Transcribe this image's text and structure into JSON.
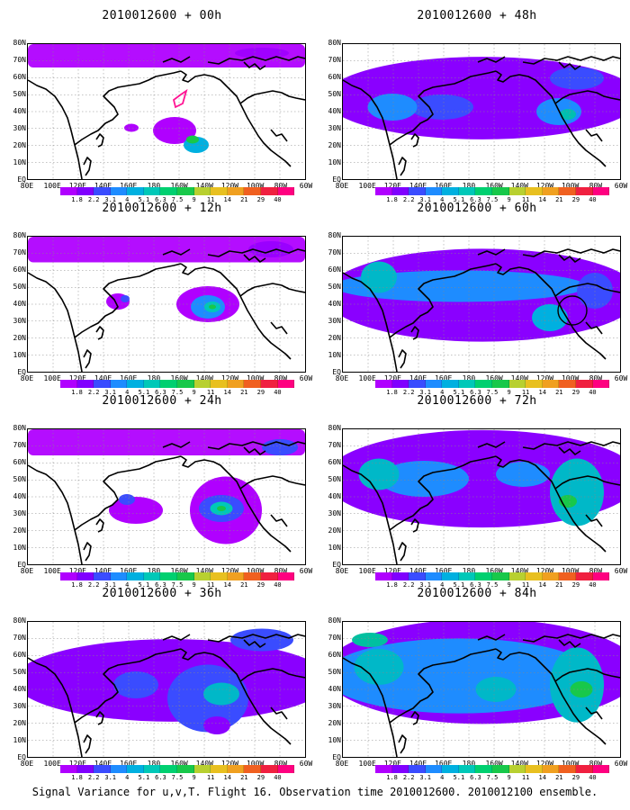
{
  "panels": [
    {
      "title": "2010012600 + 00h",
      "spread": 0,
      "blobs": [
        [
          163,
          96,
          48,
          30,
          "#b000ff",
          1
        ],
        [
          187,
          112,
          28,
          18,
          "#00b0e0",
          1
        ],
        [
          183,
          106,
          14,
          9,
          "#18c84a",
          1
        ],
        [
          115,
          93,
          16,
          9,
          "#b000ff",
          1
        ],
        [
          0,
          16,
          310,
          20,
          "#b000ff",
          0.95
        ],
        [
          260,
          10,
          60,
          12,
          "#a000ff",
          1
        ]
      ],
      "marks": "box"
    },
    {
      "title": "2010012600 + 48h",
      "spread": 2,
      "blobs": [
        [
          155,
          60,
          175,
          55,
          "#8a00ff",
          1
        ],
        [
          110,
          70,
          70,
          28,
          "#3a4cff",
          1
        ],
        [
          55,
          70,
          55,
          30,
          "#1e8cff",
          1
        ],
        [
          240,
          75,
          50,
          30,
          "#1e8cff",
          1
        ],
        [
          250,
          78,
          18,
          12,
          "#00c0b0",
          1
        ],
        [
          260,
          38,
          60,
          25,
          "#3a4cff",
          1
        ]
      ],
      "marks": "none"
    },
    {
      "title": "2010012600 + 12h",
      "spread": 0,
      "blobs": [
        [
          200,
          75,
          70,
          40,
          "#b000ff",
          1
        ],
        [
          100,
          72,
          26,
          18,
          "#b000ff",
          1
        ],
        [
          200,
          78,
          38,
          26,
          "#1e8cff",
          1
        ],
        [
          205,
          78,
          18,
          12,
          "#00c8b8",
          1
        ],
        [
          205,
          78,
          8,
          5,
          "#18c84a",
          1
        ],
        [
          0,
          16,
          310,
          25,
          "#b000ff",
          0.95
        ],
        [
          270,
          14,
          50,
          18,
          "#9a00ff",
          1
        ],
        [
          108,
          69,
          10,
          8,
          "#3a4cff",
          1
        ]
      ],
      "marks": "none"
    },
    {
      "title": "2010012600 + 60h",
      "spread": 3,
      "blobs": [
        [
          155,
          65,
          175,
          62,
          "#8a00ff",
          1
        ],
        [
          130,
          55,
          140,
          35,
          "#1e8cff",
          1
        ],
        [
          40,
          45,
          40,
          35,
          "#00b8c8",
          1
        ],
        [
          230,
          90,
          40,
          30,
          "#00b0e0",
          1
        ],
        [
          280,
          60,
          40,
          40,
          "#3a4cff",
          1
        ]
      ],
      "marks": "circle"
    },
    {
      "title": "2010012600 + 24h",
      "spread": 1,
      "blobs": [
        [
          220,
          90,
          80,
          45,
          "#b000ff",
          1
        ],
        [
          215,
          88,
          50,
          30,
          "#3a4cff",
          1
        ],
        [
          215,
          88,
          25,
          15,
          "#00c8b8",
          1
        ],
        [
          215,
          88,
          10,
          6,
          "#18c84a",
          1
        ],
        [
          120,
          90,
          60,
          30,
          "#b000ff",
          1
        ],
        [
          0,
          14,
          310,
          30,
          "#b000ff",
          0.95
        ],
        [
          110,
          78,
          18,
          12,
          "#3a4cff",
          1
        ],
        [
          280,
          20,
          40,
          18,
          "#3a4cff",
          1
        ]
      ],
      "marks": "none"
    },
    {
      "title": "2010012600 + 72h",
      "spread": 3,
      "blobs": [
        [
          155,
          55,
          175,
          65,
          "#8a00ff",
          1
        ],
        [
          90,
          55,
          100,
          40,
          "#1e8cff",
          1
        ],
        [
          260,
          70,
          60,
          45,
          "#00b8c8",
          1
        ],
        [
          250,
          80,
          20,
          14,
          "#18c84a",
          1
        ],
        [
          40,
          50,
          45,
          35,
          "#00b8c8",
          1
        ],
        [
          200,
          50,
          60,
          28,
          "#1e8cff",
          1
        ]
      ],
      "marks": "none"
    },
    {
      "title": "2010012600 + 36h",
      "spread": 2,
      "blobs": [
        [
          160,
          65,
          175,
          55,
          "#8a00ff",
          1
        ],
        [
          200,
          85,
          90,
          45,
          "#3a4cff",
          1
        ],
        [
          215,
          80,
          40,
          25,
          "#00b8c8",
          1
        ],
        [
          120,
          70,
          50,
          30,
          "#3a4cff",
          1
        ],
        [
          260,
          20,
          70,
          25,
          "#3a4cff",
          1
        ],
        [
          210,
          115,
          30,
          20,
          "#8a00ff",
          1
        ]
      ],
      "marks": "none"
    },
    {
      "title": "2010012600 + 84h",
      "spread": 4,
      "blobs": [
        [
          155,
          55,
          175,
          70,
          "#8a00ff",
          1
        ],
        [
          130,
          60,
          150,
          50,
          "#1e8cff",
          1
        ],
        [
          40,
          50,
          55,
          40,
          "#00b8c8",
          1
        ],
        [
          260,
          70,
          60,
          50,
          "#00b8c8",
          1
        ],
        [
          265,
          75,
          25,
          18,
          "#18c84a",
          1
        ],
        [
          170,
          75,
          45,
          28,
          "#00b8c8",
          1
        ],
        [
          30,
          20,
          40,
          16,
          "#00c0a0",
          1
        ]
      ],
      "marks": "none"
    }
  ],
  "lat_labels": [
    "80N",
    "70N",
    "60N",
    "50N",
    "40N",
    "30N",
    "20N",
    "10N",
    "EQ"
  ],
  "lon_labels": [
    "80E",
    "100E",
    "120E",
    "140E",
    "160E",
    "180",
    "160W",
    "140W",
    "120W",
    "100W",
    "80W",
    "60W"
  ],
  "colorbar_ticks": [
    "1.8",
    "2.2",
    "3.1",
    "4",
    "5.1",
    "6.3",
    "7.5",
    "9",
    "11",
    "14",
    "21",
    "29",
    "40"
  ],
  "colorbar_colors": [
    "#b000ff",
    "#8000ff",
    "#3a4cff",
    "#1e8cff",
    "#00b0e0",
    "#00c8b8",
    "#00d070",
    "#18c84a",
    "#b8d030",
    "#e8c020",
    "#f0a020",
    "#f06020",
    "#f02040",
    "#ff0080"
  ],
  "footer": "Signal Variance for u,v,T. Flight 16. Observation time 2010012600. 2010012100 ensemble."
}
